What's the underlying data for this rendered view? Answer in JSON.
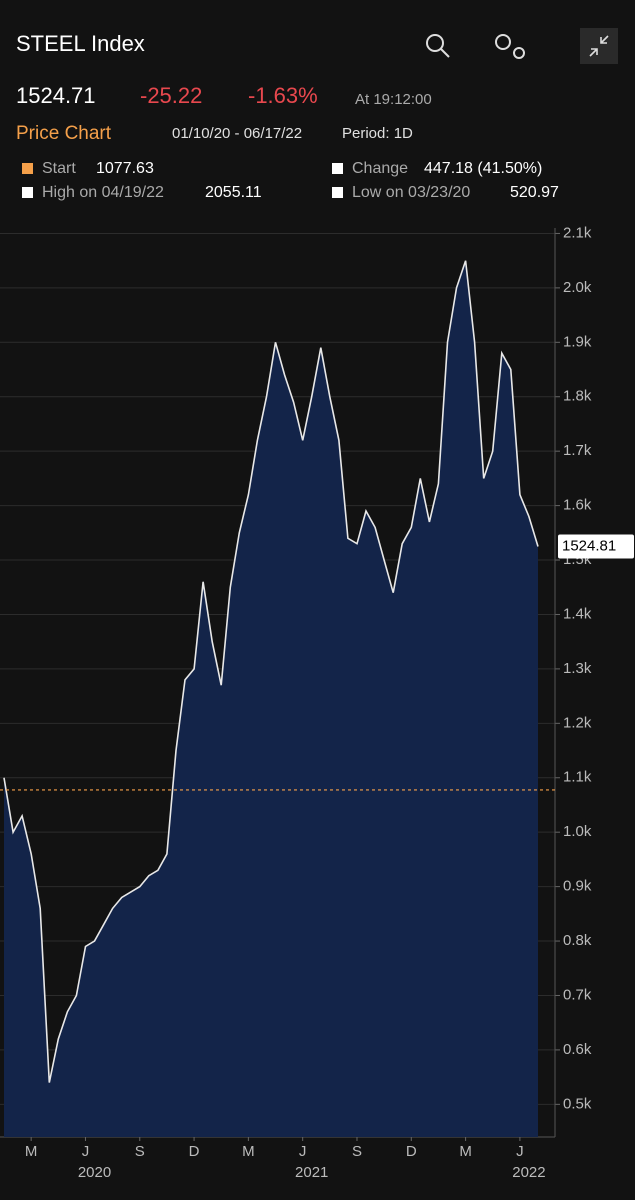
{
  "header": {
    "title": "STEEL Index",
    "price": 1524.71,
    "change": -25.22,
    "change_pct": "-1.63%",
    "time": "At 19:12:00",
    "chart_label": "Price Chart",
    "date_range": "01/10/20 - 06/17/22",
    "period": "Period: 1D"
  },
  "stats": {
    "start_label": "Start",
    "start": 1077.63,
    "change_label": "Change",
    "change": "447.18 (41.50%)",
    "high_label": "High on 04/19/22",
    "high": 2055.11,
    "low_label": "Low on 03/23/20",
    "low": 520.97
  },
  "chart_data": {
    "type": "area",
    "categories": [
      null,
      null,
      null,
      "M",
      null,
      null,
      null,
      null,
      null,
      "J",
      null,
      null,
      null,
      null,
      null,
      "S",
      null,
      null,
      null,
      null,
      null,
      "D",
      null,
      null,
      null,
      null,
      null,
      "M",
      null,
      null,
      null,
      null,
      null,
      "J",
      null,
      null,
      null,
      null,
      null,
      "S",
      null,
      null,
      null,
      null,
      null,
      "D",
      null,
      null,
      null,
      null,
      null,
      "M",
      null,
      null,
      null,
      null,
      null,
      "J",
      null,
      null
    ],
    "years": [
      "2020",
      "2021",
      "2022"
    ],
    "series": [
      {
        "name": "STEEL Index",
        "color": "#e8e8e8",
        "fill": "#132449",
        "values": [
          1100,
          1000,
          1030,
          960,
          860,
          540,
          620,
          670,
          700,
          790,
          800,
          830,
          860,
          880,
          890,
          900,
          920,
          930,
          960,
          1150,
          1280,
          1300,
          1460,
          1350,
          1270,
          1450,
          1550,
          1620,
          1720,
          1800,
          1900,
          1840,
          1790,
          1720,
          1800,
          1890,
          1800,
          1720,
          1540,
          1530,
          1590,
          1560,
          1500,
          1440,
          1530,
          1560,
          1650,
          1570,
          1640,
          1900,
          2000,
          2050,
          1900,
          1650,
          1700,
          1880,
          1850,
          1620,
          1580,
          1524.81
        ]
      }
    ],
    "reference_line": 1077.63,
    "reference_color": "#f5a04a",
    "ylim": [
      440,
      2110
    ],
    "yticks": [
      {
        "value": 500,
        "label": "0.5k"
      },
      {
        "value": 600,
        "label": "0.6k"
      },
      {
        "value": 700,
        "label": "0.7k"
      },
      {
        "value": 800,
        "label": "0.8k"
      },
      {
        "value": 900,
        "label": "0.9k"
      },
      {
        "value": 1000,
        "label": "1.0k"
      },
      {
        "value": 1100,
        "label": "1.1k"
      },
      {
        "value": 1200,
        "label": "1.2k"
      },
      {
        "value": 1300,
        "label": "1.3k"
      },
      {
        "value": 1400,
        "label": "1.4k"
      },
      {
        "value": 1500,
        "label": "1.5k"
      },
      {
        "value": 1600,
        "label": "1.6k"
      },
      {
        "value": 1700,
        "label": "1.7k"
      },
      {
        "value": 1800,
        "label": "1.8k"
      },
      {
        "value": 1900,
        "label": "1.9k"
      },
      {
        "value": 2000,
        "label": "2.0k"
      },
      {
        "value": 2100,
        "label": "2.1k"
      }
    ],
    "grid": true
  }
}
